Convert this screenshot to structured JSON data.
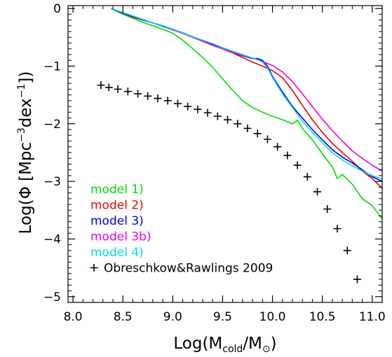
{
  "chart_data": {
    "type": "line",
    "xlabel": {
      "pre": "Log(M",
      "sub": "cold",
      "mid": "/M",
      "sym": "⊙",
      "post": ")"
    },
    "ylabel": {
      "pre": "Log(Φ  [Mpc",
      "sup1": "−3",
      "mid": "dex",
      "sup2": "−1",
      "post": "])"
    },
    "xlim": [
      7.95,
      11.1
    ],
    "ylim": [
      -5.1,
      0.05
    ],
    "xticks": [
      {
        "v": 8.0,
        "label": "8.0"
      },
      {
        "v": 8.5,
        "label": "8.5"
      },
      {
        "v": 9.0,
        "label": "9.0"
      },
      {
        "v": 9.5,
        "label": "9.5"
      },
      {
        "v": 10.0,
        "label": "10.0"
      },
      {
        "v": 10.5,
        "label": "10.5"
      },
      {
        "v": 11.0,
        "label": "11.0"
      }
    ],
    "yticks": [
      {
        "v": 0,
        "label": "0"
      },
      {
        "v": -1,
        "label": "−1"
      },
      {
        "v": -2,
        "label": "−2"
      },
      {
        "v": -3,
        "label": "−3"
      },
      {
        "v": -4,
        "label": "−4"
      },
      {
        "v": -5,
        "label": "−5"
      }
    ],
    "series": [
      {
        "name": "model 1)",
        "color": "#00dd00",
        "x": [
          8.38,
          8.5,
          8.6,
          8.7,
          8.8,
          8.9,
          9.0,
          9.1,
          9.2,
          9.3,
          9.4,
          9.5,
          9.6,
          9.7,
          9.8,
          9.9,
          10.0,
          10.1,
          10.2,
          10.25,
          10.3,
          10.4,
          10.5,
          10.6,
          10.65,
          10.7,
          10.8,
          10.9,
          11.0,
          11.1
        ],
        "y": [
          0.0,
          -0.1,
          -0.17,
          -0.24,
          -0.3,
          -0.36,
          -0.43,
          -0.55,
          -0.7,
          -0.85,
          -1.02,
          -1.22,
          -1.42,
          -1.6,
          -1.72,
          -1.8,
          -1.87,
          -1.93,
          -2.0,
          -1.94,
          -2.08,
          -2.28,
          -2.52,
          -2.75,
          -2.95,
          -2.88,
          -3.05,
          -3.3,
          -3.42,
          -3.65
        ]
      },
      {
        "name": "model 2)",
        "color": "#ee0000",
        "x": [
          8.38,
          8.5,
          8.6,
          8.7,
          8.8,
          8.9,
          9.0,
          9.1,
          9.2,
          9.3,
          9.4,
          9.5,
          9.6,
          9.7,
          9.8,
          9.9,
          10.0,
          10.1,
          10.2,
          10.3,
          10.4,
          10.5,
          10.6,
          10.7,
          10.8,
          10.9,
          11.0,
          11.1
        ],
        "y": [
          0.0,
          -0.08,
          -0.15,
          -0.2,
          -0.25,
          -0.3,
          -0.36,
          -0.42,
          -0.49,
          -0.56,
          -0.62,
          -0.7,
          -0.77,
          -0.85,
          -0.93,
          -1.0,
          -1.08,
          -1.2,
          -1.42,
          -1.68,
          -1.93,
          -2.15,
          -2.34,
          -2.5,
          -2.65,
          -2.82,
          -2.95,
          -3.12
        ]
      },
      {
        "name": "model 3)",
        "color": "#0000ee",
        "x": [
          8.38,
          8.5,
          8.6,
          8.7,
          8.8,
          8.9,
          9.0,
          9.1,
          9.2,
          9.3,
          9.4,
          9.5,
          9.6,
          9.7,
          9.8,
          9.85,
          9.9,
          9.95,
          10.0,
          10.1,
          10.2,
          10.3,
          10.4,
          10.5,
          10.6,
          10.7,
          10.8,
          10.9,
          11.0,
          11.1
        ],
        "y": [
          0.0,
          -0.08,
          -0.14,
          -0.2,
          -0.25,
          -0.31,
          -0.37,
          -0.43,
          -0.5,
          -0.57,
          -0.63,
          -0.7,
          -0.76,
          -0.82,
          -0.87,
          -0.87,
          -0.9,
          -1.0,
          -1.18,
          -1.45,
          -1.7,
          -1.9,
          -2.1,
          -2.28,
          -2.45,
          -2.58,
          -2.68,
          -2.8,
          -2.92,
          -3.0
        ]
      },
      {
        "name": "model 3b)",
        "color": "#ee00ee",
        "x": [
          8.38,
          8.5,
          8.6,
          8.7,
          8.8,
          8.9,
          9.0,
          9.1,
          9.2,
          9.3,
          9.4,
          9.5,
          9.6,
          9.7,
          9.8,
          9.9,
          10.0,
          10.1,
          10.2,
          10.3,
          10.4,
          10.5,
          10.6,
          10.7,
          10.8,
          10.9,
          11.0,
          11.1
        ],
        "y": [
          0.0,
          -0.07,
          -0.13,
          -0.19,
          -0.25,
          -0.3,
          -0.37,
          -0.43,
          -0.5,
          -0.57,
          -0.64,
          -0.7,
          -0.76,
          -0.81,
          -0.86,
          -0.92,
          -0.99,
          -1.1,
          -1.27,
          -1.48,
          -1.7,
          -1.92,
          -2.12,
          -2.3,
          -2.47,
          -2.6,
          -2.72,
          -2.82
        ]
      },
      {
        "name": "model 4)",
        "color": "#00dddd",
        "x": [
          8.38,
          8.5,
          8.6,
          8.7,
          8.8,
          8.9,
          9.0,
          9.1,
          9.2,
          9.3,
          9.4,
          9.5,
          9.6,
          9.7,
          9.8,
          9.85,
          9.9,
          9.95,
          10.0,
          10.1,
          10.2,
          10.3,
          10.4,
          10.5,
          10.6,
          10.7,
          10.8,
          10.9,
          11.0,
          11.1
        ],
        "y": [
          0.0,
          -0.07,
          -0.13,
          -0.19,
          -0.25,
          -0.3,
          -0.36,
          -0.42,
          -0.49,
          -0.55,
          -0.61,
          -0.68,
          -0.74,
          -0.8,
          -0.86,
          -0.89,
          -0.93,
          -1.03,
          -1.2,
          -1.48,
          -1.72,
          -1.95,
          -2.15,
          -2.33,
          -2.5,
          -2.63,
          -2.73,
          -2.82,
          -2.9,
          -2.96
        ]
      }
    ],
    "scatter": {
      "name": "Obreschkow&Rawlings 2009",
      "color": "#000000",
      "x": [
        8.28,
        8.36,
        8.45,
        8.55,
        8.65,
        8.75,
        8.85,
        8.95,
        9.05,
        9.15,
        9.25,
        9.35,
        9.45,
        9.55,
        9.65,
        9.75,
        9.85,
        9.95,
        10.05,
        10.15,
        10.25,
        10.35,
        10.45,
        10.55,
        10.65,
        10.75,
        10.85
      ],
      "y": [
        -1.33,
        -1.37,
        -1.4,
        -1.44,
        -1.48,
        -1.52,
        -1.56,
        -1.6,
        -1.65,
        -1.7,
        -1.75,
        -1.81,
        -1.87,
        -1.93,
        -2.0,
        -2.08,
        -2.17,
        -2.27,
        -2.4,
        -2.55,
        -2.72,
        -2.92,
        -3.18,
        -3.48,
        -3.82,
        -4.2,
        -4.7
      ]
    },
    "legend": {
      "placement": "bottom-left",
      "entries": [
        "model 1)",
        "model 2)",
        "model 3)",
        "model 3b)",
        "model 4)",
        "Obreschkow&Rawlings 2009"
      ]
    },
    "grid": false
  }
}
